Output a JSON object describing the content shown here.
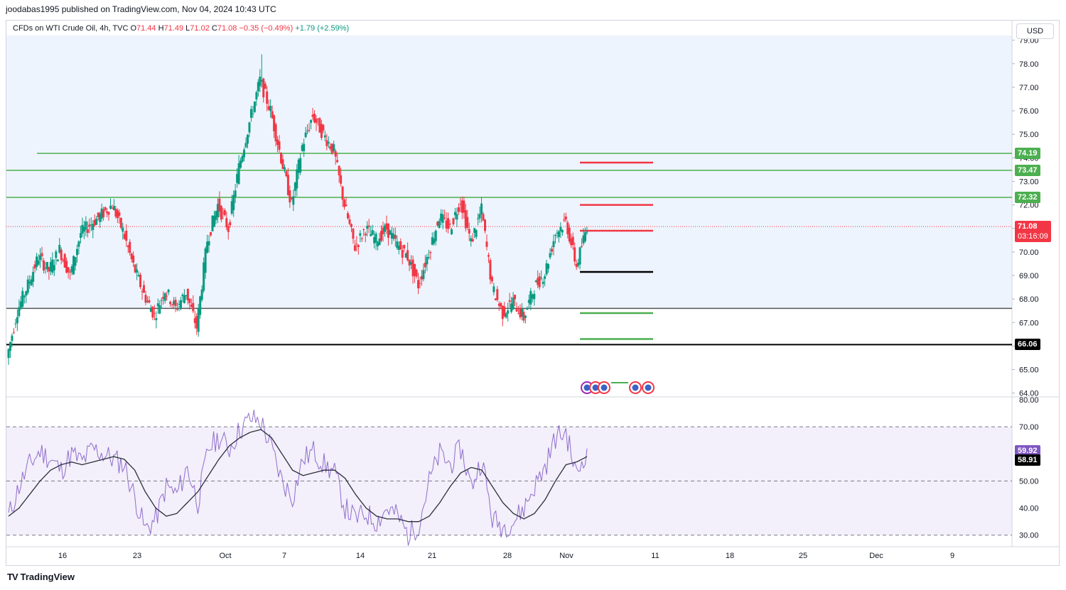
{
  "header": {
    "published_text": "joodabas1995 published on TradingView.com, Nov 04, 2024 10:43 UTC"
  },
  "legend": {
    "symbol": "CFDs on WTI Crude Oil, 4h, TVC",
    "o_label": "O",
    "o": "71.44",
    "h_label": "H",
    "h": "71.49",
    "l_label": "L",
    "l": "71.02",
    "c_label": "C",
    "c": "71.08",
    "change": "−0.35 (−0.49%)",
    "change2": "+1.79 (+2.59%)"
  },
  "currency_button": "USD",
  "footer": {
    "brand": "TradingView",
    "logo": "TV"
  },
  "colors": {
    "up": "#089981",
    "down": "#f23645",
    "green_line": "#4caf50",
    "red_line": "#f23645",
    "rsi": "#7e57c2",
    "bg_band": "#eef4fd",
    "rsi_band": "#f3effb"
  },
  "price_tags": [
    {
      "label": "74.19",
      "price": 74.19,
      "color": "#4caf50"
    },
    {
      "label": "73.47",
      "price": 73.47,
      "color": "#4caf50"
    },
    {
      "label": "72.32",
      "price": 72.32,
      "color": "#4caf50"
    },
    {
      "label": "71.08",
      "sublabel": "03:16:09",
      "price": 71.08,
      "color": "#f23645"
    },
    {
      "label": "66.06",
      "price": 66.06,
      "color": "#000000"
    }
  ],
  "rsi_tags": [
    {
      "label": "59.92",
      "value": 59.92,
      "color": "#7e57c2"
    },
    {
      "label": "58.91",
      "value": 58.91,
      "color": "#000000"
    }
  ],
  "chart_data": [
    {
      "type": "candlestick",
      "title": "CFDs on WTI Crude Oil, 4h, TVC",
      "x_ticks": [
        "16",
        "23",
        "Oct",
        "7",
        "14",
        "21",
        "28",
        "Nov",
        "11",
        "18",
        "25",
        "Dec",
        "9"
      ],
      "y_ticks": [
        "79.00",
        "78.00",
        "77.00",
        "76.00",
        "75.00",
        "74.00",
        "73.00",
        "72.00",
        "71.00",
        "70.00",
        "69.00",
        "68.00",
        "67.00",
        "66.00",
        "65.00",
        "64.00"
      ],
      "ylim": [
        63.9,
        79.2
      ],
      "horizontal_lines": [
        {
          "price": 74.19,
          "color": "green",
          "from": "Sep 11"
        },
        {
          "price": 73.47,
          "color": "green",
          "from": "start"
        },
        {
          "price": 72.32,
          "color": "green",
          "from": "start"
        },
        {
          "price": 67.6,
          "color": "gray",
          "from": "start"
        },
        {
          "price": 66.06,
          "color": "black",
          "from": "start"
        }
      ],
      "projection_levels": [
        {
          "price": 73.8,
          "color": "red"
        },
        {
          "price": 72.0,
          "color": "red"
        },
        {
          "price": 70.9,
          "color": "red"
        },
        {
          "price": 69.15,
          "color": "black"
        },
        {
          "price": 67.4,
          "color": "green"
        },
        {
          "price": 66.3,
          "color": "green"
        }
      ],
      "anchors": [
        {
          "price": 65.5,
          "h": 66.0,
          "l": 65.2
        },
        {
          "price": 67.5
        },
        {
          "price": 68.6
        },
        {
          "price": 69.8
        },
        {
          "price": 69.2
        },
        {
          "price": 70.1
        },
        {
          "price": 69.0
        },
        {
          "price": 70.8
        },
        {
          "price": 71.2
        },
        {
          "price": 71.6
        },
        {
          "price": 72.0
        },
        {
          "price": 70.9
        },
        {
          "price": 69.4
        },
        {
          "price": 68.2
        },
        {
          "price": 67.3
        },
        {
          "price": 68.4
        },
        {
          "price": 67.6
        },
        {
          "price": 68.3
        },
        {
          "price": 66.8
        },
        {
          "price": 70.5
        },
        {
          "price": 72.0
        },
        {
          "price": 71.0
        },
        {
          "price": 73.6
        },
        {
          "price": 75.5
        },
        {
          "price": 77.3,
          "h": 78.4
        },
        {
          "price": 76.0
        },
        {
          "price": 74.0
        },
        {
          "price": 72.0
        },
        {
          "price": 74.5
        },
        {
          "price": 75.8
        },
        {
          "price": 75.0
        },
        {
          "price": 74.3
        },
        {
          "price": 72.0
        },
        {
          "price": 70.2
        },
        {
          "price": 71.0
        },
        {
          "price": 70.5
        },
        {
          "price": 71.0
        },
        {
          "price": 70.3
        },
        {
          "price": 69.8
        },
        {
          "price": 68.6
        },
        {
          "price": 70.0
        },
        {
          "price": 71.5
        },
        {
          "price": 71.0
        },
        {
          "price": 72.2
        },
        {
          "price": 70.4
        },
        {
          "price": 71.8
        },
        {
          "price": 68.5
        },
        {
          "price": 67.4
        },
        {
          "price": 67.9
        },
        {
          "price": 67.2
        },
        {
          "price": 68.5
        },
        {
          "price": 69.1
        },
        {
          "price": 70.8
        },
        {
          "price": 71.3
        },
        {
          "price": 69.4
        },
        {
          "price": 71.1
        }
      ]
    },
    {
      "type": "line",
      "title": "RSI",
      "y_ticks": [
        "80.00",
        "70.00",
        "60.00",
        "50.00",
        "40.00",
        "30.00"
      ],
      "ylim": [
        26,
        80
      ],
      "levels": [
        70,
        50,
        30
      ],
      "series": [
        {
          "values_rsi": [
            37,
            48,
            56,
            61,
            58,
            54,
            60,
            57,
            62,
            60,
            58,
            56,
            44,
            32,
            36,
            48,
            45,
            55,
            42,
            62,
            66,
            62,
            69,
            73,
            72,
            62,
            50,
            44,
            58,
            61,
            56,
            53,
            40,
            36,
            38,
            35,
            40,
            37,
            30,
            34,
            50,
            60,
            56,
            62,
            48,
            58,
            36,
            33,
            35,
            40,
            48,
            55,
            66,
            68,
            52,
            62
          ]
        },
        {
          "values_sma": [
            37,
            40,
            45,
            50,
            54,
            56,
            57,
            56,
            57,
            58,
            59,
            58,
            54,
            46,
            40,
            37,
            38,
            42,
            46,
            52,
            58,
            63,
            66,
            68,
            69,
            66,
            60,
            54,
            52,
            53,
            54,
            54,
            51,
            45,
            40,
            37,
            36,
            36,
            35,
            35,
            37,
            42,
            48,
            53,
            55,
            54,
            48,
            42,
            38,
            36,
            38,
            43,
            50,
            56,
            57,
            59
          ]
        }
      ]
    }
  ]
}
